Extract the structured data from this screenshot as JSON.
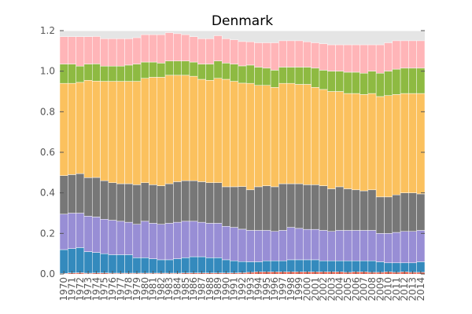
{
  "chart_data": {
    "type": "bar",
    "stacked": true,
    "title": "Denmark",
    "xlabel": "",
    "ylabel": "",
    "ylim": [
      0.0,
      1.2
    ],
    "yticks": [
      "0.0",
      "0.2",
      "0.4",
      "0.6",
      "0.8",
      "1.0",
      "1.2"
    ],
    "grid": true,
    "legend": "none",
    "categories": [
      "1970",
      "1971",
      "1972",
      "1973",
      "1974",
      "1975",
      "1976",
      "1977",
      "1978",
      "1979",
      "1980",
      "1981",
      "1982",
      "1983",
      "1984",
      "1985",
      "1986",
      "1987",
      "1988",
      "1989",
      "1990",
      "1991",
      "1992",
      "1993",
      "1994",
      "1995",
      "1996",
      "1997",
      "1998",
      "1999",
      "2000",
      "2001",
      "2002",
      "2003",
      "2004",
      "2005",
      "2006",
      "2007",
      "2008",
      "2009",
      "2010",
      "2011",
      "2012",
      "2013",
      "2014"
    ],
    "series": [
      {
        "color": "#e24a33",
        "values": [
          0.003,
          0.005,
          0.006,
          0.004,
          0.005,
          0.005,
          0.004,
          0.004,
          0.004,
          0.004,
          0.004,
          0.004,
          0.004,
          0.004,
          0.004,
          0.005,
          0.005,
          0.005,
          0.005,
          0.005,
          0.005,
          0.005,
          0.006,
          0.008,
          0.01,
          0.01,
          0.01,
          0.01,
          0.01,
          0.01,
          0.01,
          0.01,
          0.01,
          0.01,
          0.01,
          0.008,
          0.01,
          0.01,
          0.008,
          0.008,
          0.01,
          0.008,
          0.01,
          0.008,
          0.008
        ]
      },
      {
        "color": "#348abd",
        "values": [
          0.117,
          0.12,
          0.124,
          0.106,
          0.101,
          0.095,
          0.091,
          0.091,
          0.091,
          0.076,
          0.076,
          0.071,
          0.066,
          0.066,
          0.071,
          0.075,
          0.08,
          0.08,
          0.075,
          0.075,
          0.065,
          0.06,
          0.055,
          0.052,
          0.05,
          0.055,
          0.055,
          0.055,
          0.06,
          0.06,
          0.06,
          0.06,
          0.055,
          0.055,
          0.055,
          0.057,
          0.055,
          0.055,
          0.057,
          0.052,
          0.045,
          0.047,
          0.045,
          0.047,
          0.052
        ]
      },
      {
        "color": "#988ed5",
        "values": [
          0.175,
          0.175,
          0.17,
          0.175,
          0.175,
          0.17,
          0.17,
          0.165,
          0.16,
          0.165,
          0.18,
          0.175,
          0.175,
          0.18,
          0.18,
          0.18,
          0.175,
          0.17,
          0.17,
          0.17,
          0.165,
          0.165,
          0.16,
          0.155,
          0.155,
          0.15,
          0.145,
          0.15,
          0.16,
          0.155,
          0.15,
          0.15,
          0.15,
          0.145,
          0.15,
          0.15,
          0.15,
          0.15,
          0.15,
          0.14,
          0.145,
          0.15,
          0.155,
          0.155,
          0.155
        ]
      },
      {
        "color": "#777777",
        "values": [
          0.19,
          0.19,
          0.195,
          0.19,
          0.195,
          0.19,
          0.185,
          0.185,
          0.19,
          0.195,
          0.19,
          0.19,
          0.19,
          0.195,
          0.2,
          0.2,
          0.2,
          0.2,
          0.2,
          0.2,
          0.195,
          0.2,
          0.21,
          0.2,
          0.215,
          0.22,
          0.22,
          0.23,
          0.215,
          0.22,
          0.22,
          0.22,
          0.22,
          0.21,
          0.215,
          0.205,
          0.2,
          0.195,
          0.2,
          0.18,
          0.18,
          0.185,
          0.19,
          0.19,
          0.18
        ]
      },
      {
        "color": "#fbc15e",
        "values": [
          0.455,
          0.45,
          0.45,
          0.48,
          0.475,
          0.49,
          0.5,
          0.505,
          0.505,
          0.51,
          0.515,
          0.53,
          0.535,
          0.535,
          0.525,
          0.52,
          0.515,
          0.505,
          0.505,
          0.515,
          0.53,
          0.52,
          0.51,
          0.525,
          0.5,
          0.495,
          0.49,
          0.495,
          0.495,
          0.49,
          0.495,
          0.48,
          0.475,
          0.48,
          0.47,
          0.47,
          0.475,
          0.475,
          0.475,
          0.495,
          0.5,
          0.495,
          0.49,
          0.49,
          0.495
        ]
      },
      {
        "color": "#8eba42",
        "values": [
          0.095,
          0.095,
          0.08,
          0.08,
          0.085,
          0.075,
          0.075,
          0.075,
          0.08,
          0.085,
          0.08,
          0.075,
          0.07,
          0.07,
          0.07,
          0.07,
          0.07,
          0.075,
          0.08,
          0.085,
          0.08,
          0.085,
          0.085,
          0.09,
          0.09,
          0.085,
          0.085,
          0.08,
          0.08,
          0.085,
          0.085,
          0.095,
          0.095,
          0.1,
          0.1,
          0.105,
          0.105,
          0.105,
          0.11,
          0.115,
          0.12,
          0.125,
          0.125,
          0.125,
          0.125
        ]
      },
      {
        "color": "#ffb5b8",
        "values": [
          0.135,
          0.135,
          0.145,
          0.135,
          0.135,
          0.135,
          0.135,
          0.135,
          0.13,
          0.13,
          0.135,
          0.135,
          0.14,
          0.14,
          0.135,
          0.13,
          0.125,
          0.125,
          0.125,
          0.125,
          0.12,
          0.12,
          0.12,
          0.115,
          0.12,
          0.125,
          0.135,
          0.13,
          0.13,
          0.13,
          0.125,
          0.125,
          0.13,
          0.13,
          0.13,
          0.135,
          0.135,
          0.14,
          0.13,
          0.14,
          0.14,
          0.14,
          0.135,
          0.135,
          0.135
        ]
      }
    ]
  }
}
